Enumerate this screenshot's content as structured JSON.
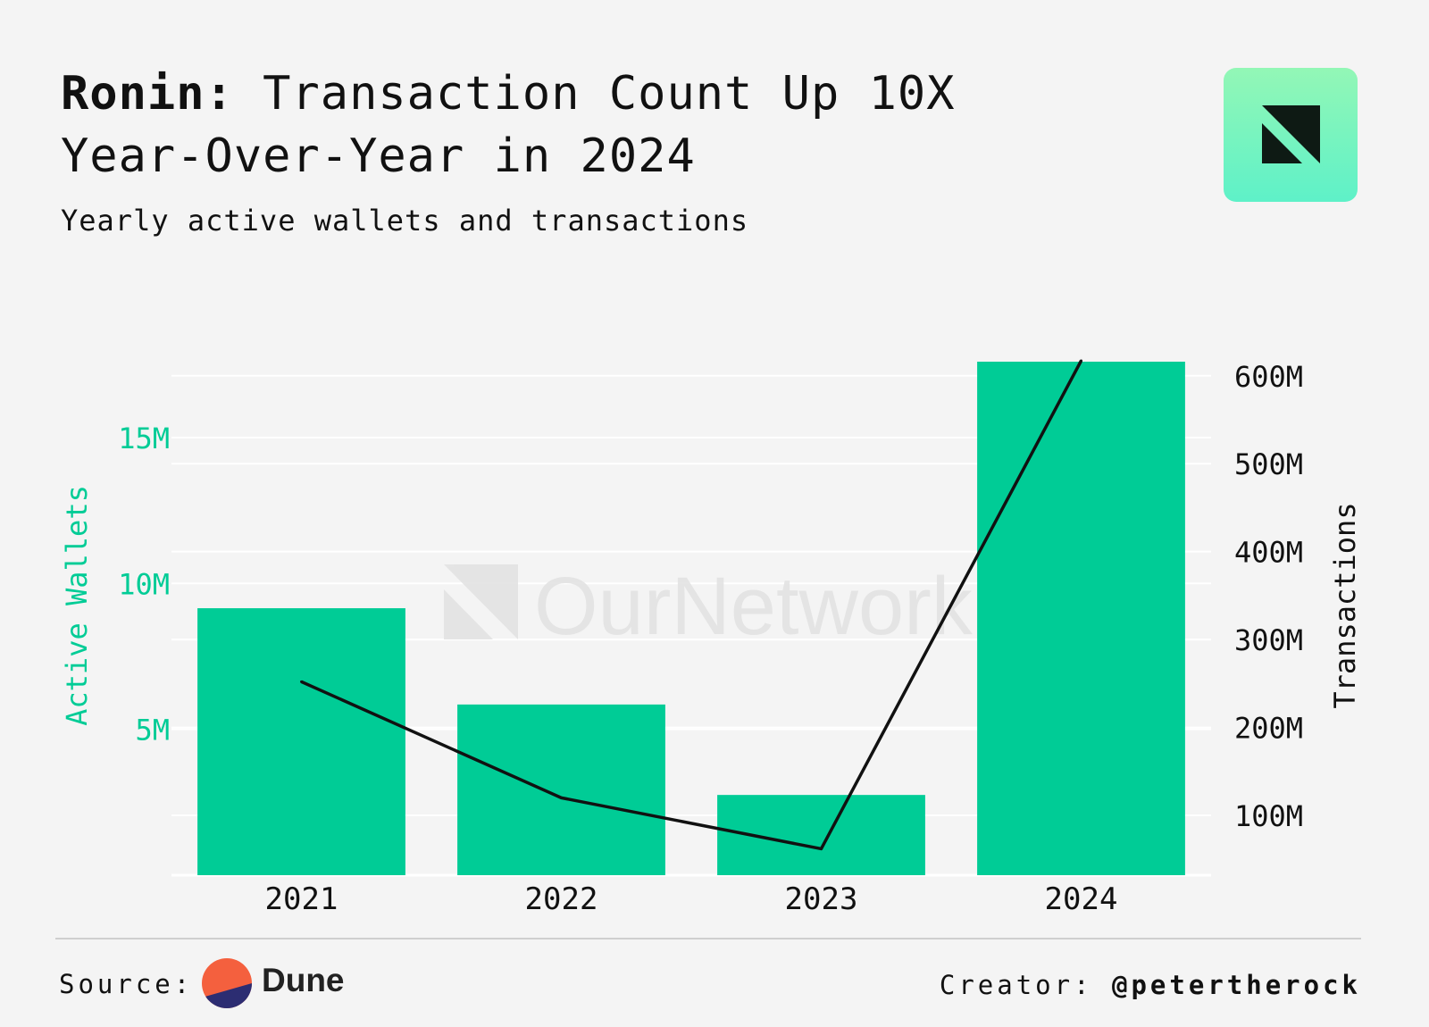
{
  "header": {
    "title_bold": "Ronin:",
    "title_rest": " Transaction Count Up 10X Year-Over-Year in 2024",
    "subtitle": "Yearly active wallets and transactions"
  },
  "watermark": {
    "text": "OurNetwork"
  },
  "footer": {
    "source_label": "Source:",
    "source_name": "Dune",
    "creator_label": "Creator:",
    "creator_handle": "@petertherock"
  },
  "colors": {
    "bar": "#00cc96",
    "line": "#111111",
    "left_axis": "#00cc96",
    "right_axis": "#111111",
    "grid": "#ffffff",
    "dune_orange": "#f4603e",
    "dune_navy": "#2c2d72"
  },
  "chart_data": {
    "type": "bar+line",
    "categories": [
      "2021",
      "2022",
      "2023",
      "2024"
    ],
    "series": [
      {
        "name": "Active Wallets",
        "type": "bar",
        "axis": "left",
        "values": [
          9150000,
          5850000,
          2750000,
          17600000
        ]
      },
      {
        "name": "Transactions",
        "type": "line",
        "axis": "right",
        "values": [
          252000000,
          120000000,
          62000000,
          620000000
        ]
      }
    ],
    "left_axis": {
      "label": "Active Wallets",
      "ticks": [
        "5M",
        "10M",
        "15M"
      ],
      "tick_values": [
        5000000,
        10000000,
        15000000
      ],
      "range": [
        0,
        17600000
      ]
    },
    "right_axis": {
      "label": "Transactions",
      "ticks": [
        "100M",
        "200M",
        "300M",
        "400M",
        "500M",
        "600M"
      ],
      "tick_values": [
        100000000,
        200000000,
        300000000,
        400000000,
        500000000,
        600000000
      ],
      "range": [
        32000000,
        616000000
      ]
    },
    "grid": true,
    "legend": "none"
  }
}
